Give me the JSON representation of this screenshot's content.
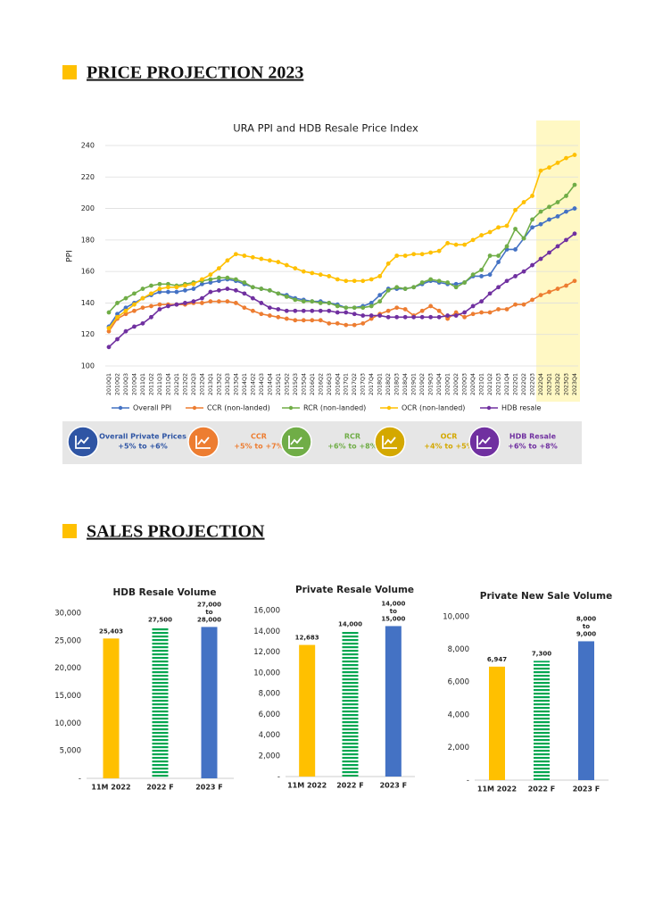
{
  "header1": {
    "title": "PRICE PROJECTION 2023"
  },
  "header2": {
    "title": "SALES PROJECTION"
  },
  "projections": [
    {
      "name": "Overall Private Prices",
      "range": "+5% to +6%",
      "color": "#2f55a4"
    },
    {
      "name": "CCR",
      "range": "+5% to +7%",
      "color": "#ed7d31"
    },
    {
      "name": "RCR",
      "range": "+6% to +8%",
      "color": "#70ad47"
    },
    {
      "name": "OCR",
      "range": "+4% to +5%",
      "color": "#d4a800"
    },
    {
      "name": "HDB Resale",
      "range": "+6% to +8%",
      "color": "#7030a0"
    }
  ],
  "chart_data": [
    {
      "type": "line",
      "title": "URA PPI and HDB Resale Price Index",
      "y_label": "PPI",
      "categories": [
        "2010Q1",
        "2010Q2",
        "2010Q3",
        "2010Q4",
        "2011Q1",
        "2011Q2",
        "2011Q3",
        "2011Q4",
        "2012Q1",
        "2012Q2",
        "2012Q3",
        "2012Q4",
        "2013Q1",
        "2013Q2",
        "2013Q3",
        "2013Q4",
        "2014Q1",
        "2014Q2",
        "2014Q3",
        "2014Q4",
        "2015Q1",
        "2015Q2",
        "2015Q3",
        "2015Q4",
        "2016Q1",
        "2016Q2",
        "2016Q3",
        "2016Q4",
        "2017Q1",
        "2017Q2",
        "2017Q3",
        "2017Q4",
        "2018Q1",
        "2018Q2",
        "2018Q3",
        "2018Q4",
        "2019Q1",
        "2019Q2",
        "2019Q3",
        "2019Q4",
        "2020Q1",
        "2020Q2",
        "2020Q3",
        "2020Q4",
        "2021Q1",
        "2021Q2",
        "2021Q3",
        "2021Q4",
        "2022Q1",
        "2022Q2",
        "2022Q3",
        "2022Q4",
        "2023Q1",
        "2023Q2",
        "2023Q3",
        "2023Q4"
      ],
      "highlight_from": "2022Q4",
      "highlight_color": "#fff8c4",
      "ylim": [
        100,
        240
      ],
      "yticks": [
        100,
        120,
        140,
        160,
        180,
        200,
        220,
        240
      ],
      "grid": true,
      "series": [
        {
          "name": "Overall PPI",
          "color": "#4472c4",
          "values": [
            125,
            133,
            137,
            140,
            143,
            145,
            147,
            147,
            147,
            148,
            149,
            152,
            153,
            154,
            155,
            154,
            152,
            150,
            149,
            148,
            146,
            145,
            143,
            142,
            141,
            141,
            140,
            139,
            137,
            137,
            138,
            140,
            145,
            149,
            149,
            149,
            150,
            152,
            154,
            153,
            152,
            152,
            153,
            157,
            157,
            158,
            166,
            174,
            174,
            181,
            188,
            190,
            193,
            195,
            198,
            200
          ]
        },
        {
          "name": "CCR (non-landed)",
          "color": "#ed7d31",
          "values": [
            122,
            130,
            133,
            135,
            137,
            138,
            139,
            139,
            139,
            139,
            140,
            140,
            141,
            141,
            141,
            140,
            137,
            135,
            133,
            132,
            131,
            130,
            129,
            129,
            129,
            129,
            127,
            127,
            126,
            126,
            127,
            130,
            133,
            135,
            137,
            136,
            132,
            135,
            138,
            135,
            130,
            134,
            131,
            133,
            134,
            134,
            136,
            136,
            139,
            139,
            142,
            145,
            147,
            149,
            151,
            154
          ]
        },
        {
          "name": "RCR (non-landed)",
          "color": "#70ad47",
          "values": [
            134,
            140,
            143,
            146,
            149,
            151,
            152,
            152,
            151,
            152,
            153,
            154,
            155,
            156,
            156,
            155,
            153,
            150,
            149,
            148,
            146,
            144,
            142,
            141,
            141,
            140,
            140,
            138,
            137,
            137,
            137,
            138,
            141,
            148,
            150,
            149,
            150,
            153,
            155,
            154,
            153,
            150,
            153,
            158,
            161,
            170,
            170,
            176,
            187,
            181,
            193,
            198,
            201,
            204,
            208,
            215
          ]
        },
        {
          "name": "OCR (non-landed)",
          "color": "#ffc000",
          "values": [
            124,
            131,
            135,
            139,
            143,
            146,
            149,
            150,
            150,
            151,
            152,
            155,
            158,
            162,
            167,
            171,
            170,
            169,
            168,
            167,
            166,
            164,
            162,
            160,
            159,
            158,
            157,
            155,
            154,
            154,
            154,
            155,
            157,
            165,
            170,
            170,
            171,
            171,
            172,
            173,
            178,
            177,
            177,
            180,
            183,
            185,
            188,
            189,
            199,
            204,
            208,
            224,
            226,
            229,
            232,
            234
          ]
        },
        {
          "name": "HDB resale",
          "color": "#7030a0",
          "values": [
            112,
            117,
            122,
            125,
            127,
            131,
            136,
            138,
            139,
            140,
            141,
            143,
            147,
            148,
            149,
            148,
            146,
            143,
            140,
            137,
            136,
            135,
            135,
            135,
            135,
            135,
            135,
            134,
            134,
            133,
            132,
            132,
            132,
            131,
            131,
            131,
            131,
            131,
            131,
            131,
            132,
            132,
            134,
            138,
            141,
            146,
            150,
            154,
            157,
            160,
            164,
            168,
            172,
            176,
            180,
            184
          ]
        }
      ]
    },
    {
      "type": "bar",
      "title": "HDB Resale Volume",
      "categories": [
        "11M 2022",
        "2022 F",
        "2023 F"
      ],
      "values": [
        25403,
        27500,
        27500
      ],
      "value_labels": [
        "25,403",
        "27,500",
        "27,000\nto\n28,000"
      ],
      "colors": [
        "#ffc000",
        "#00a650",
        "#4472c4"
      ],
      "striped": [
        false,
        true,
        false
      ],
      "ylim": [
        0,
        30000
      ],
      "yticks": [
        {
          "value": 0,
          "label": "-"
        },
        {
          "value": 5000,
          "label": "5,000"
        },
        {
          "value": 10000,
          "label": "10,000"
        },
        {
          "value": 15000,
          "label": "15,000"
        },
        {
          "value": 20000,
          "label": "20,000"
        },
        {
          "value": 25000,
          "label": "25,000"
        },
        {
          "value": 30000,
          "label": "30,000"
        }
      ]
    },
    {
      "type": "bar",
      "title": "Private Resale Volume",
      "categories": [
        "11M 2022",
        "2022 F",
        "2023 F"
      ],
      "values": [
        12683,
        14000,
        14500
      ],
      "value_labels": [
        "12,683",
        "14,000",
        "14,000\nto\n15,000"
      ],
      "colors": [
        "#ffc000",
        "#00a650",
        "#4472c4"
      ],
      "striped": [
        false,
        true,
        false
      ],
      "ylim": [
        0,
        16000
      ],
      "yticks": [
        {
          "value": 0,
          "label": "-"
        },
        {
          "value": 2000,
          "label": "2,000"
        },
        {
          "value": 4000,
          "label": "4,000"
        },
        {
          "value": 6000,
          "label": "6,000"
        },
        {
          "value": 8000,
          "label": "8,000"
        },
        {
          "value": 10000,
          "label": "10,000"
        },
        {
          "value": 12000,
          "label": "12,000"
        },
        {
          "value": 14000,
          "label": "14,000"
        },
        {
          "value": 16000,
          "label": "16,000"
        }
      ]
    },
    {
      "type": "bar",
      "title": "Private New Sale Volume",
      "categories": [
        "11M 2022",
        "2022 F",
        "2023 F"
      ],
      "values": [
        6947,
        7300,
        8500
      ],
      "value_labels": [
        "6,947",
        "7,300",
        "8,000\nto\n9,000"
      ],
      "colors": [
        "#ffc000",
        "#00a650",
        "#4472c4"
      ],
      "striped": [
        false,
        true,
        false
      ],
      "ylim": [
        0,
        10000
      ],
      "yticks": [
        {
          "value": 0,
          "label": "-"
        },
        {
          "value": 2000,
          "label": "2,000"
        },
        {
          "value": 4000,
          "label": "4,000"
        },
        {
          "value": 6000,
          "label": "6,000"
        },
        {
          "value": 8000,
          "label": "8,000"
        },
        {
          "value": 10000,
          "label": "10,000"
        }
      ]
    }
  ]
}
